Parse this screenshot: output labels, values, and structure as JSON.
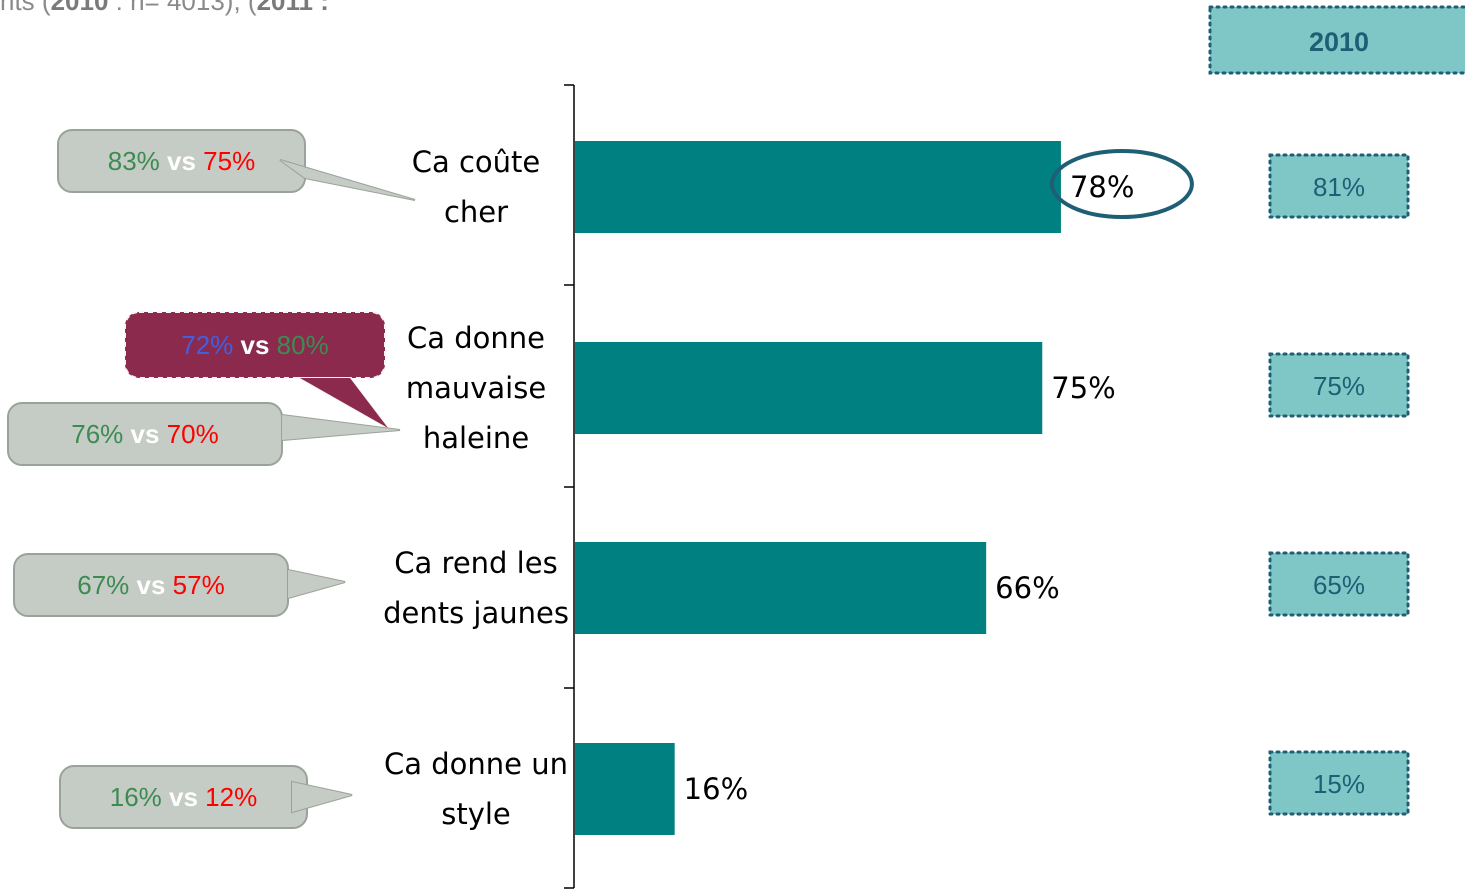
{
  "subtitle": {
    "prefix": "nts (",
    "year_2010": "2010",
    "mid": " : n= 4013), (",
    "year_2011": "2011 :"
  },
  "comparison_header": "2010",
  "colors": {
    "bar": "#008080",
    "box_fill": "#7fc7c7",
    "box_border": "#1f5f75",
    "bubble_fill": "#c5cbc5",
    "bubble_highlight": "#8b2a4d",
    "green": "#3c8c52",
    "red": "#ff0000",
    "blue": "#4060e0",
    "vs": "#ffffff"
  },
  "chart_data": {
    "type": "bar",
    "orientation": "horizontal",
    "categories": [
      "Ca coûte cher",
      "Ca donne mauvaise haleine",
      "Ca rend les dents jaunes",
      "Ca donne un style"
    ],
    "values": [
      78,
      75,
      66,
      16
    ],
    "value_labels": [
      "78%",
      "75%",
      "66%",
      "16%"
    ],
    "highlighted_value_index": 0,
    "comparison_2010": [
      "81%",
      "75%",
      "65%",
      "15%"
    ],
    "callouts": [
      {
        "category_index": 0,
        "left": "83%",
        "vs": "vs",
        "right": "75%",
        "left_color": "green",
        "right_color": "red"
      },
      {
        "category_index": 1,
        "left": "72%",
        "vs": "vs",
        "right": "80%",
        "left_color": "blue",
        "right_color": "green",
        "highlight": true
      },
      {
        "category_index": 1,
        "left": "76%",
        "vs": "vs",
        "right": "70%",
        "left_color": "green",
        "right_color": "red"
      },
      {
        "category_index": 2,
        "left": "67%",
        "vs": "vs",
        "right": "57%",
        "left_color": "green",
        "right_color": "red"
      },
      {
        "category_index": 3,
        "left": "16%",
        "vs": "vs",
        "right": "12%",
        "left_color": "green",
        "right_color": "red"
      }
    ],
    "xlim": [
      0,
      100
    ],
    "grid": false
  }
}
